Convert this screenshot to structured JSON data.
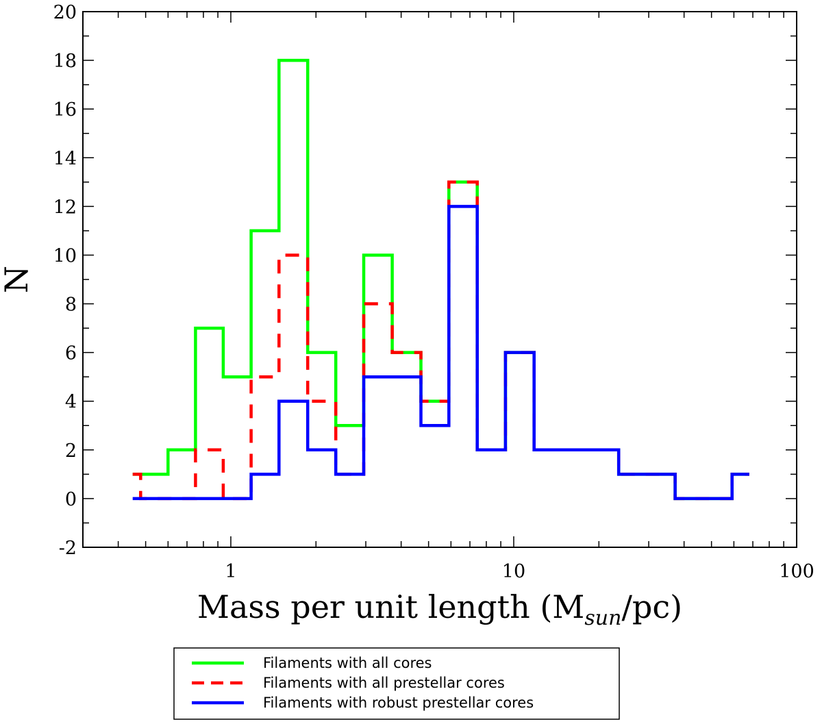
{
  "chart_data": {
    "type": "step-histogram",
    "xscale": "log",
    "xlim": [
      0.3,
      100
    ],
    "ylim": [
      -2,
      20
    ],
    "xlabel_main": "Mass per unit length (M",
    "xlabel_sub": "sun",
    "xlabel_end": "/pc)",
    "ylabel": "N",
    "x_ticks": [
      {
        "value": 1,
        "label": "1"
      },
      {
        "value": 10,
        "label": "10"
      },
      {
        "value": 100,
        "label": "100"
      }
    ],
    "y_ticks": [
      {
        "value": -2,
        "label": "-2"
      },
      {
        "value": 0,
        "label": "0"
      },
      {
        "value": 2,
        "label": "2"
      },
      {
        "value": 4,
        "label": "4"
      },
      {
        "value": 6,
        "label": "6"
      },
      {
        "value": 8,
        "label": "8"
      },
      {
        "value": 10,
        "label": "10"
      },
      {
        "value": 12,
        "label": "12"
      },
      {
        "value": 14,
        "label": "14"
      },
      {
        "value": 16,
        "label": "16"
      },
      {
        "value": 18,
        "label": "18"
      },
      {
        "value": 20,
        "label": "20"
      }
    ],
    "bin_edges": [
      0.45,
      0.48,
      0.6,
      0.75,
      0.94,
      1.18,
      1.48,
      1.87,
      2.35,
      2.95,
      3.72,
      4.7,
      5.9,
      7.43,
      9.35,
      11.8,
      14.8,
      18.7,
      23.5,
      29.6,
      37.2,
      46.9,
      59.1,
      68.0
    ],
    "series": [
      {
        "name": "Filaments with all cores",
        "color": "#00ff00",
        "dash": "solid",
        "values": [
          1,
          1,
          2,
          7,
          5,
          11,
          18,
          6,
          3,
          10,
          6,
          4,
          13,
          2,
          6,
          2,
          2,
          2,
          1,
          1,
          0,
          0,
          1
        ]
      },
      {
        "name": "Filaments with all prestellar cores",
        "color": "#ff0000",
        "dash": "dashed",
        "values": [
          1,
          0,
          0,
          2,
          0,
          5,
          10,
          4,
          1,
          8,
          6,
          4,
          13,
          2,
          6,
          2,
          2,
          2,
          1,
          1,
          0,
          0,
          1
        ]
      },
      {
        "name": "Filaments with robust prestellar cores",
        "color": "#0000ff",
        "dash": "solid",
        "values": [
          0,
          0,
          0,
          0,
          0,
          1,
          4,
          2,
          1,
          5,
          5,
          3,
          12,
          2,
          6,
          2,
          2,
          2,
          1,
          1,
          0,
          0,
          1
        ]
      }
    ],
    "legend_position": "bottom-center"
  }
}
